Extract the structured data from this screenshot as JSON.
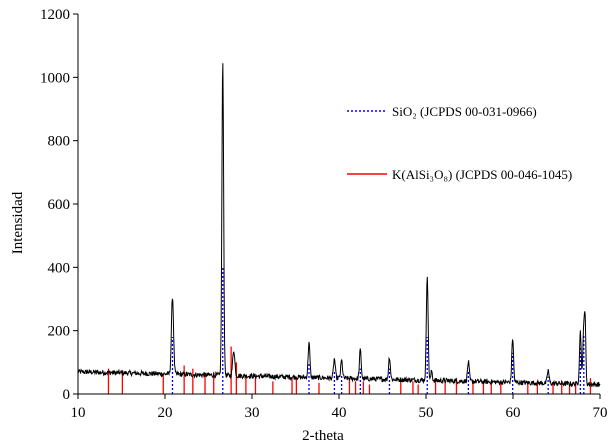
{
  "chart_data": {
    "type": "line",
    "xlabel": "2-theta",
    "ylabel": "Intensidad",
    "xlim": [
      10,
      70
    ],
    "ylim": [
      0,
      1200
    ],
    "x_ticks": [
      10,
      20,
      30,
      40,
      50,
      60,
      70
    ],
    "y_ticks": [
      0,
      200,
      400,
      600,
      800,
      1000,
      1200
    ],
    "grid": false,
    "legend_position": "right",
    "pattern": {
      "color": "#000000",
      "baseline": 70,
      "baseline_end": 30,
      "noise": 8,
      "peaks": [
        {
          "x": 20.86,
          "y": 295,
          "w": 0.12
        },
        {
          "x": 26.64,
          "y": 1040,
          "w": 0.1
        },
        {
          "x": 27.9,
          "y": 130,
          "w": 0.12
        },
        {
          "x": 36.55,
          "y": 160,
          "w": 0.1
        },
        {
          "x": 39.47,
          "y": 110,
          "w": 0.1
        },
        {
          "x": 40.3,
          "y": 105,
          "w": 0.1
        },
        {
          "x": 42.45,
          "y": 140,
          "w": 0.1
        },
        {
          "x": 45.8,
          "y": 120,
          "w": 0.1
        },
        {
          "x": 50.14,
          "y": 385,
          "w": 0.1
        },
        {
          "x": 50.65,
          "y": 80,
          "w": 0.08
        },
        {
          "x": 54.87,
          "y": 110,
          "w": 0.1
        },
        {
          "x": 59.96,
          "y": 190,
          "w": 0.1
        },
        {
          "x": 64.04,
          "y": 90,
          "w": 0.1
        },
        {
          "x": 67.74,
          "y": 215,
          "w": 0.1
        },
        {
          "x": 68.14,
          "y": 230,
          "w": 0.1
        },
        {
          "x": 68.3,
          "y": 210,
          "w": 0.08
        }
      ]
    },
    "series": [
      {
        "name": "SiO₂ (JCPDS 00-031-0966)",
        "color": "#0000ff",
        "style": "dotted",
        "x": [
          20.86,
          26.64,
          36.55,
          39.47,
          40.3,
          42.45,
          45.8,
          50.14,
          54.87,
          59.96,
          64.04,
          67.74,
          68.14
        ],
        "y": [
          180,
          400,
          100,
          70,
          60,
          80,
          80,
          180,
          70,
          130,
          55,
          150,
          190
        ]
      },
      {
        "name": "K(AlSi₃O₈) (JCPDS 00-046-1045)",
        "color": "#ff0000",
        "style": "solid",
        "x": [
          13.5,
          15.1,
          19.8,
          22.2,
          23.2,
          24.6,
          25.6,
          27.6,
          28.2,
          29.3,
          30.4,
          32.4,
          34.6,
          35.1,
          37.7,
          41.2,
          41.9,
          42.8,
          43.5,
          47.1,
          48.5,
          49.1,
          51.1,
          52.2,
          53.5,
          55.4,
          56.6,
          57.5,
          58.6,
          61.7,
          62.8,
          64.6,
          65.6,
          66.5,
          67.2,
          68.9
        ],
        "y": [
          80,
          75,
          60,
          90,
          80,
          60,
          70,
          150,
          100,
          60,
          55,
          40,
          50,
          55,
          35,
          45,
          40,
          40,
          30,
          35,
          40,
          30,
          50,
          40,
          50,
          45,
          40,
          35,
          40,
          35,
          40,
          35,
          40,
          30,
          40,
          50
        ]
      }
    ]
  }
}
